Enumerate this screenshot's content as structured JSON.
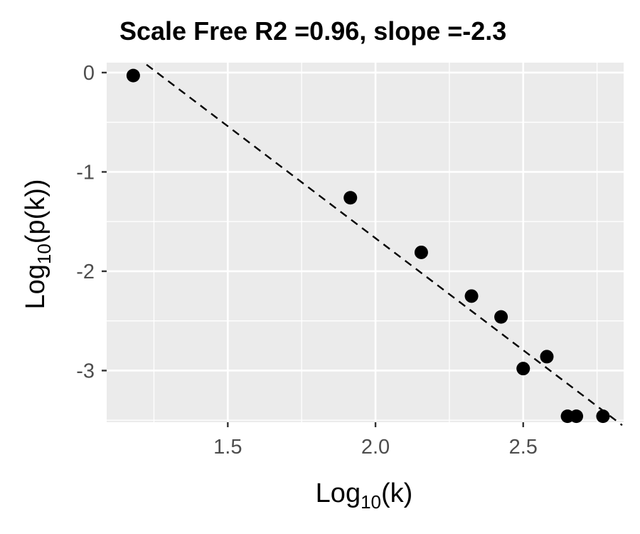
{
  "chart_data": {
    "type": "scatter",
    "title": "Scale Free R2 =0.96, slope =-2.3",
    "xlabel": {
      "base": "Log",
      "sub": "10",
      "arg": "(k)"
    },
    "ylabel": {
      "base": "Log",
      "sub": "10",
      "arg": "(p(k))"
    },
    "xlim": [
      1.09,
      2.84
    ],
    "ylim": [
      -3.52,
      0.1
    ],
    "x_ticks": [
      1.5,
      2.0,
      2.5
    ],
    "x_tick_labels": [
      "1.5",
      "2.0",
      "2.5"
    ],
    "y_ticks": [
      0,
      -1,
      -2,
      -3
    ],
    "y_tick_labels": [
      "0",
      "-1",
      "-2",
      "-3"
    ],
    "grid": true,
    "points": [
      {
        "x": 1.18,
        "y": -0.03
      },
      {
        "x": 1.915,
        "y": -1.26
      },
      {
        "x": 2.155,
        "y": -1.81
      },
      {
        "x": 2.325,
        "y": -2.25
      },
      {
        "x": 2.425,
        "y": -2.46
      },
      {
        "x": 2.5,
        "y": -2.98
      },
      {
        "x": 2.58,
        "y": -2.86
      },
      {
        "x": 2.65,
        "y": -3.46
      },
      {
        "x": 2.68,
        "y": -3.46
      },
      {
        "x": 2.77,
        "y": -3.46
      }
    ],
    "fit_line": {
      "x": [
        1.225,
        2.835
      ],
      "y": [
        0.08,
        -3.55
      ],
      "style": "dashed"
    },
    "colors": {
      "panel": "#ebebeb",
      "grid": "#ffffff",
      "point": "#000000",
      "line": "#000000"
    }
  }
}
